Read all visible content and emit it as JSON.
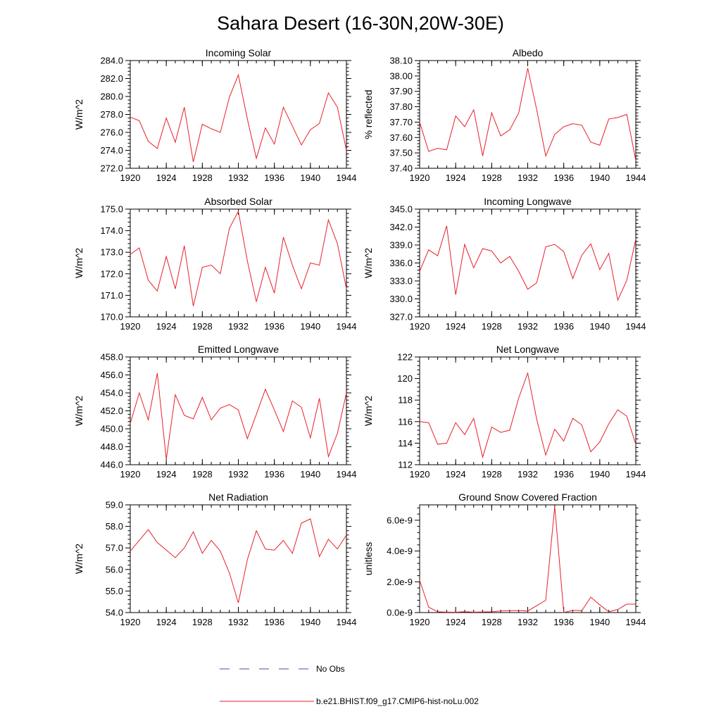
{
  "title": "Sahara Desert (16-30N,20W-30E)",
  "legend": {
    "entries": [
      {
        "label": "No Obs",
        "color": "#4a4aa8",
        "style": "dashed"
      },
      {
        "label": "b.e21.BHIST.f09_g17.CMIP6-hist-noLu.002",
        "color": "#e8202a",
        "style": "solid"
      }
    ]
  },
  "chart_data": [
    {
      "type": "line",
      "title": "Incoming Solar",
      "ylabel": "W/m^2",
      "xlim": [
        1920,
        1944
      ],
      "ylim": [
        272,
        284
      ],
      "xticks": [
        1920,
        1924,
        1928,
        1932,
        1936,
        1940,
        1944
      ],
      "yticks": [
        "272.0",
        "274.0",
        "276.0",
        "278.0",
        "280.0",
        "282.0",
        "284.0"
      ],
      "series": [
        {
          "name": "b.e21.BHIST.f09_g17.CMIP6-hist-noLu.002",
          "color": "#e8202a",
          "x": [
            1920,
            1921,
            1922,
            1923,
            1924,
            1925,
            1926,
            1927,
            1928,
            1929,
            1930,
            1931,
            1932,
            1933,
            1934,
            1935,
            1936,
            1937,
            1938,
            1939,
            1940,
            1941,
            1942,
            1943,
            1944
          ],
          "y": [
            277.7,
            277.3,
            275.0,
            274.2,
            277.6,
            274.9,
            278.8,
            272.7,
            276.9,
            276.4,
            276.0,
            279.9,
            282.4,
            277.5,
            273.1,
            276.5,
            274.7,
            278.8,
            276.7,
            274.6,
            276.3,
            277.0,
            280.4,
            278.8,
            274.0
          ]
        }
      ]
    },
    {
      "type": "line",
      "title": "Albedo",
      "ylabel": "% reflected",
      "xlim": [
        1920,
        1944
      ],
      "ylim": [
        37.4,
        38.1
      ],
      "xticks": [
        1920,
        1924,
        1928,
        1932,
        1936,
        1940,
        1944
      ],
      "yticks": [
        "37.40",
        "37.50",
        "37.60",
        "37.70",
        "37.80",
        "37.90",
        "38.00",
        "38.10"
      ],
      "series": [
        {
          "name": "b.e21.BHIST.f09_g17.CMIP6-hist-noLu.002",
          "color": "#e8202a",
          "x": [
            1920,
            1921,
            1922,
            1923,
            1924,
            1925,
            1926,
            1927,
            1928,
            1929,
            1930,
            1931,
            1932,
            1933,
            1934,
            1935,
            1936,
            1937,
            1938,
            1939,
            1940,
            1941,
            1942,
            1943,
            1944
          ],
          "y": [
            37.7,
            37.51,
            37.53,
            37.52,
            37.74,
            37.67,
            37.78,
            37.48,
            37.76,
            37.61,
            37.65,
            37.76,
            38.05,
            37.78,
            37.48,
            37.62,
            37.67,
            37.69,
            37.68,
            37.57,
            37.55,
            37.72,
            37.73,
            37.75,
            37.45
          ]
        }
      ]
    },
    {
      "type": "line",
      "title": "Absorbed Solar",
      "ylabel": "W/m^2",
      "xlim": [
        1920,
        1944
      ],
      "ylim": [
        170,
        175
      ],
      "xticks": [
        1920,
        1924,
        1928,
        1932,
        1936,
        1940,
        1944
      ],
      "yticks": [
        "170.0",
        "171.0",
        "172.0",
        "173.0",
        "174.0",
        "175.0"
      ],
      "series": [
        {
          "name": "b.e21.BHIST.f09_g17.CMIP6-hist-noLu.002",
          "color": "#e8202a",
          "x": [
            1920,
            1921,
            1922,
            1923,
            1924,
            1925,
            1926,
            1927,
            1928,
            1929,
            1930,
            1931,
            1932,
            1933,
            1934,
            1935,
            1936,
            1937,
            1938,
            1939,
            1940,
            1941,
            1942,
            1943,
            1944
          ],
          "y": [
            172.9,
            173.2,
            171.7,
            171.2,
            172.8,
            171.3,
            173.3,
            170.5,
            172.3,
            172.4,
            172.0,
            174.1,
            174.9,
            172.6,
            170.7,
            172.3,
            171.1,
            173.7,
            172.4,
            171.3,
            172.5,
            172.4,
            174.5,
            173.4,
            171.3
          ]
        }
      ]
    },
    {
      "type": "line",
      "title": "Incoming Longwave",
      "ylabel": "W/m^2",
      "xlim": [
        1920,
        1944
      ],
      "ylim": [
        327,
        345
      ],
      "xticks": [
        1920,
        1924,
        1928,
        1932,
        1936,
        1940,
        1944
      ],
      "yticks": [
        "327.0",
        "330.0",
        "333.0",
        "336.0",
        "339.0",
        "342.0",
        "345.0"
      ],
      "series": [
        {
          "name": "b.e21.BHIST.f09_g17.CMIP6-hist-noLu.002",
          "color": "#e8202a",
          "x": [
            1920,
            1921,
            1922,
            1923,
            1924,
            1925,
            1926,
            1927,
            1928,
            1929,
            1930,
            1931,
            1932,
            1933,
            1934,
            1935,
            1936,
            1937,
            1938,
            1939,
            1940,
            1941,
            1942,
            1943,
            1944
          ],
          "y": [
            334.6,
            338.2,
            337.2,
            342.2,
            330.7,
            339.1,
            335.2,
            338.4,
            338.0,
            336.0,
            337.1,
            334.6,
            331.6,
            332.7,
            338.7,
            339.1,
            337.9,
            333.4,
            337.3,
            339.2,
            334.9,
            337.6,
            329.8,
            333.1,
            340.0
          ]
        }
      ]
    },
    {
      "type": "line",
      "title": "Emitted Longwave",
      "ylabel": "W/m^2",
      "xlim": [
        1920,
        1944
      ],
      "ylim": [
        446,
        458
      ],
      "xticks": [
        1920,
        1924,
        1928,
        1932,
        1936,
        1940,
        1944
      ],
      "yticks": [
        "446.0",
        "448.0",
        "450.0",
        "452.0",
        "454.0",
        "456.0",
        "458.0"
      ],
      "series": [
        {
          "name": "b.e21.BHIST.f09_g17.CMIP6-hist-noLu.002",
          "color": "#e8202a",
          "x": [
            1920,
            1921,
            1922,
            1923,
            1924,
            1925,
            1926,
            1927,
            1928,
            1929,
            1930,
            1931,
            1932,
            1933,
            1934,
            1935,
            1936,
            1937,
            1938,
            1939,
            1940,
            1941,
            1942,
            1943,
            1944
          ],
          "y": [
            450.6,
            454.0,
            451.0,
            456.2,
            446.6,
            453.8,
            451.5,
            451.1,
            453.5,
            451.0,
            452.3,
            452.7,
            452.1,
            448.9,
            451.6,
            454.4,
            452.1,
            449.7,
            453.1,
            452.4,
            449.0,
            453.4,
            446.9,
            449.5,
            454.0
          ]
        }
      ]
    },
    {
      "type": "line",
      "title": "Net Longwave",
      "ylabel": "W/m^2",
      "xlim": [
        1920,
        1944
      ],
      "ylim": [
        112,
        122
      ],
      "xticks": [
        1920,
        1924,
        1928,
        1932,
        1936,
        1940,
        1944
      ],
      "yticks": [
        "112",
        "114",
        "116",
        "118",
        "120",
        "122"
      ],
      "series": [
        {
          "name": "b.e21.BHIST.f09_g17.CMIP6-hist-noLu.002",
          "color": "#e8202a",
          "x": [
            1920,
            1921,
            1922,
            1923,
            1924,
            1925,
            1926,
            1927,
            1928,
            1929,
            1930,
            1931,
            1932,
            1933,
            1934,
            1935,
            1936,
            1937,
            1938,
            1939,
            1940,
            1941,
            1942,
            1943,
            1944
          ],
          "y": [
            116.0,
            115.9,
            113.9,
            114.0,
            115.9,
            114.8,
            116.3,
            112.7,
            115.5,
            115.0,
            115.2,
            118.2,
            120.5,
            116.2,
            112.9,
            115.3,
            114.2,
            116.3,
            115.7,
            113.2,
            114.1,
            115.8,
            117.1,
            116.5,
            113.9
          ]
        }
      ]
    },
    {
      "type": "line",
      "title": "Net Radiation",
      "ylabel": "W/m^2",
      "xlim": [
        1920,
        1944
      ],
      "ylim": [
        54,
        59
      ],
      "xticks": [
        1920,
        1924,
        1928,
        1932,
        1936,
        1940,
        1944
      ],
      "yticks": [
        "54.0",
        "55.0",
        "56.0",
        "57.0",
        "58.0",
        "59.0"
      ],
      "series": [
        {
          "name": "b.e21.BHIST.f09_g17.CMIP6-hist-noLu.002",
          "color": "#e8202a",
          "x": [
            1920,
            1921,
            1922,
            1923,
            1924,
            1925,
            1926,
            1927,
            1928,
            1929,
            1930,
            1931,
            1932,
            1933,
            1934,
            1935,
            1936,
            1937,
            1938,
            1939,
            1940,
            1941,
            1942,
            1943,
            1944
          ],
          "y": [
            56.85,
            57.35,
            57.85,
            57.25,
            56.9,
            56.55,
            57.0,
            57.75,
            56.75,
            57.35,
            56.85,
            55.85,
            54.45,
            56.45,
            57.8,
            56.95,
            56.9,
            57.35,
            56.75,
            58.15,
            58.35,
            56.6,
            57.4,
            56.95,
            57.6
          ]
        }
      ]
    },
    {
      "type": "line",
      "title": "Ground Snow Covered Fraction",
      "ylabel": "unitless",
      "xlim": [
        1920,
        1944
      ],
      "ylim": [
        0,
        7e-09
      ],
      "xticks": [
        1920,
        1924,
        1928,
        1932,
        1936,
        1940,
        1944
      ],
      "yticks": [
        "0.0e-9",
        "2.0e-9",
        "4.0e-9",
        "6.0e-9"
      ],
      "series": [
        {
          "name": "b.e21.BHIST.f09_g17.CMIP6-hist-noLu.002",
          "color": "#e8202a",
          "x": [
            1920,
            1921,
            1922,
            1923,
            1924,
            1925,
            1926,
            1927,
            1928,
            1929,
            1930,
            1931,
            1932,
            1933,
            1934,
            1935,
            1936,
            1937,
            1938,
            1939,
            1940,
            1941,
            1942,
            1943,
            1944
          ],
          "y": [
            2.1e-09,
            3.5e-10,
            5e-11,
            3e-11,
            2e-11,
            6e-11,
            3e-11,
            4e-11,
            5e-11,
            1e-10,
            1.2e-10,
            1.3e-10,
            1e-10,
            4.5e-10,
            8e-10,
            6.9e-09,
            0,
            1.5e-10,
            1.2e-10,
            1e-09,
            5e-10,
            5e-11,
            2e-10,
            5.5e-10,
            5.5e-10
          ]
        }
      ]
    }
  ]
}
